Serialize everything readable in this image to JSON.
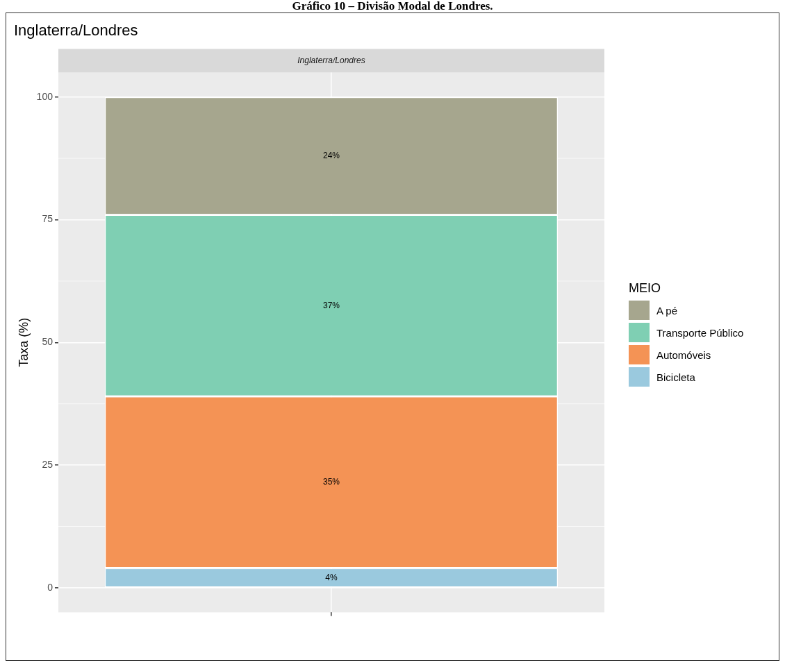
{
  "chart_data": {
    "type": "bar",
    "stacked": true,
    "title": "Inglaterra/Londres",
    "subtitle": "Inglaterra/Londres",
    "annotations": [
      "Gráfico 10 – Divisão Modal de Londres."
    ],
    "ylabel": "Taxa (%)",
    "legend_title": "MEIO",
    "legend": "right",
    "grid": true,
    "categories": [
      null
    ],
    "series": [
      {
        "name": "Bicicleta",
        "color": "#9ac9de",
        "values": [
          4
        ],
        "value_labels": [
          "4%"
        ]
      },
      {
        "name": "Automóveis",
        "color": "#f49355",
        "values": [
          35
        ],
        "value_labels": [
          "35%"
        ]
      },
      {
        "name": "Transporte Público",
        "color": "#7fcfb3",
        "values": [
          37
        ],
        "value_labels": [
          "37%"
        ]
      },
      {
        "name": "A pé",
        "color": "#a6a68e",
        "values": [
          24
        ],
        "value_labels": [
          "24%"
        ]
      }
    ],
    "ylim": [
      -5,
      105
    ],
    "yticks": [
      0,
      25,
      50,
      75,
      100
    ]
  }
}
